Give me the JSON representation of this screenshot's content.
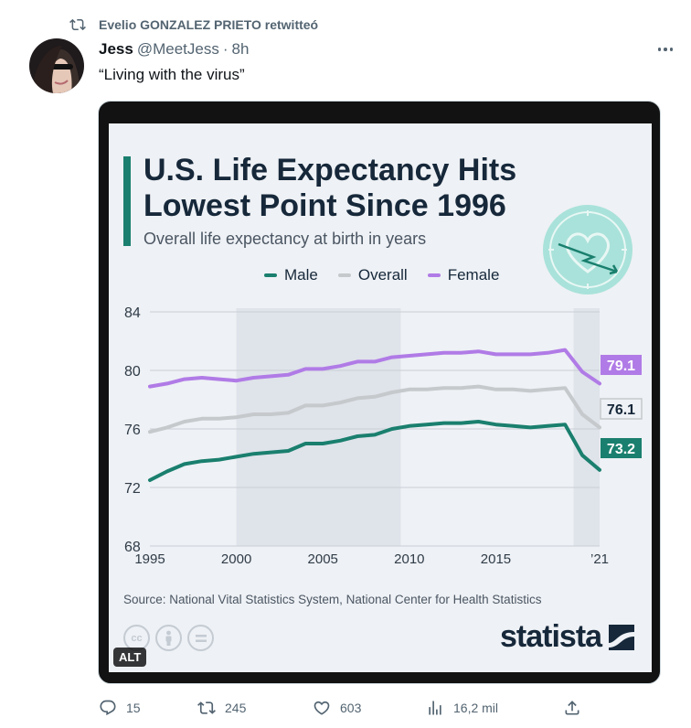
{
  "retweet": {
    "text": "Evelio GONZALEZ PRIETO retwitteó"
  },
  "author": {
    "name": "Jess",
    "handle": "@MeetJess",
    "separator": "·",
    "time": "8h"
  },
  "tweet": {
    "text": "“Living with the virus”"
  },
  "media": {
    "alt_label": "ALT"
  },
  "infographic": {
    "title_line1": "U.S. Life Expectancy Hits",
    "title_line2": "Lowest Point Since 1996",
    "subtitle": "Overall life expectancy at birth in years",
    "source": "Source: National Vital Statistics System, National Center for Health Statistics",
    "brand": "statista"
  },
  "chart_data": {
    "type": "line",
    "x": [
      1995,
      1996,
      1997,
      1998,
      1999,
      2000,
      2001,
      2002,
      2003,
      2004,
      2005,
      2006,
      2007,
      2008,
      2009,
      2010,
      2011,
      2012,
      2013,
      2014,
      2015,
      2016,
      2017,
      2018,
      2019,
      2020,
      2021
    ],
    "series": [
      {
        "name": "Male",
        "color": "#1a7f6e",
        "values": [
          72.5,
          73.1,
          73.6,
          73.8,
          73.9,
          74.1,
          74.3,
          74.4,
          74.5,
          75.0,
          75.0,
          75.2,
          75.5,
          75.6,
          76.0,
          76.2,
          76.3,
          76.4,
          76.4,
          76.5,
          76.3,
          76.2,
          76.1,
          76.2,
          76.3,
          74.2,
          73.2
        ],
        "end_label": "73.2"
      },
      {
        "name": "Overall",
        "color": "#c6c9cc",
        "values": [
          75.8,
          76.1,
          76.5,
          76.7,
          76.7,
          76.8,
          77.0,
          77.0,
          77.1,
          77.6,
          77.6,
          77.8,
          78.1,
          78.2,
          78.5,
          78.7,
          78.7,
          78.8,
          78.8,
          78.9,
          78.7,
          78.7,
          78.6,
          78.7,
          78.8,
          77.0,
          76.1
        ],
        "end_label": "76.1"
      },
      {
        "name": "Female",
        "color": "#b07be6",
        "values": [
          78.9,
          79.1,
          79.4,
          79.5,
          79.4,
          79.3,
          79.5,
          79.6,
          79.7,
          80.1,
          80.1,
          80.3,
          80.6,
          80.6,
          80.9,
          81.0,
          81.1,
          81.2,
          81.2,
          81.3,
          81.1,
          81.1,
          81.1,
          81.2,
          81.4,
          79.9,
          79.1
        ],
        "end_label": "79.1"
      }
    ],
    "ylim": [
      68,
      84
    ],
    "y_ticks": [
      "84",
      "80",
      "76",
      "72",
      "68"
    ],
    "x_ticks": [
      "1995",
      "2000",
      "2005",
      "2010",
      "2015",
      "’21"
    ],
    "legend_placement": "top",
    "grid": true,
    "shaded_ranges": [
      [
        2000,
        2009.5
      ],
      [
        2019.5,
        2021
      ]
    ]
  },
  "actions": {
    "reply_count": "15",
    "retweet_count": "245",
    "like_count": "603",
    "views_count": "16,2 mil"
  },
  "icons": [
    "retweet-icon",
    "more-icon",
    "clock-heart-icon",
    "cc-icon",
    "attribution-icon",
    "noderivs-icon",
    "statista-logo-icon",
    "reply-icon",
    "like-icon",
    "views-icon",
    "share-icon"
  ]
}
